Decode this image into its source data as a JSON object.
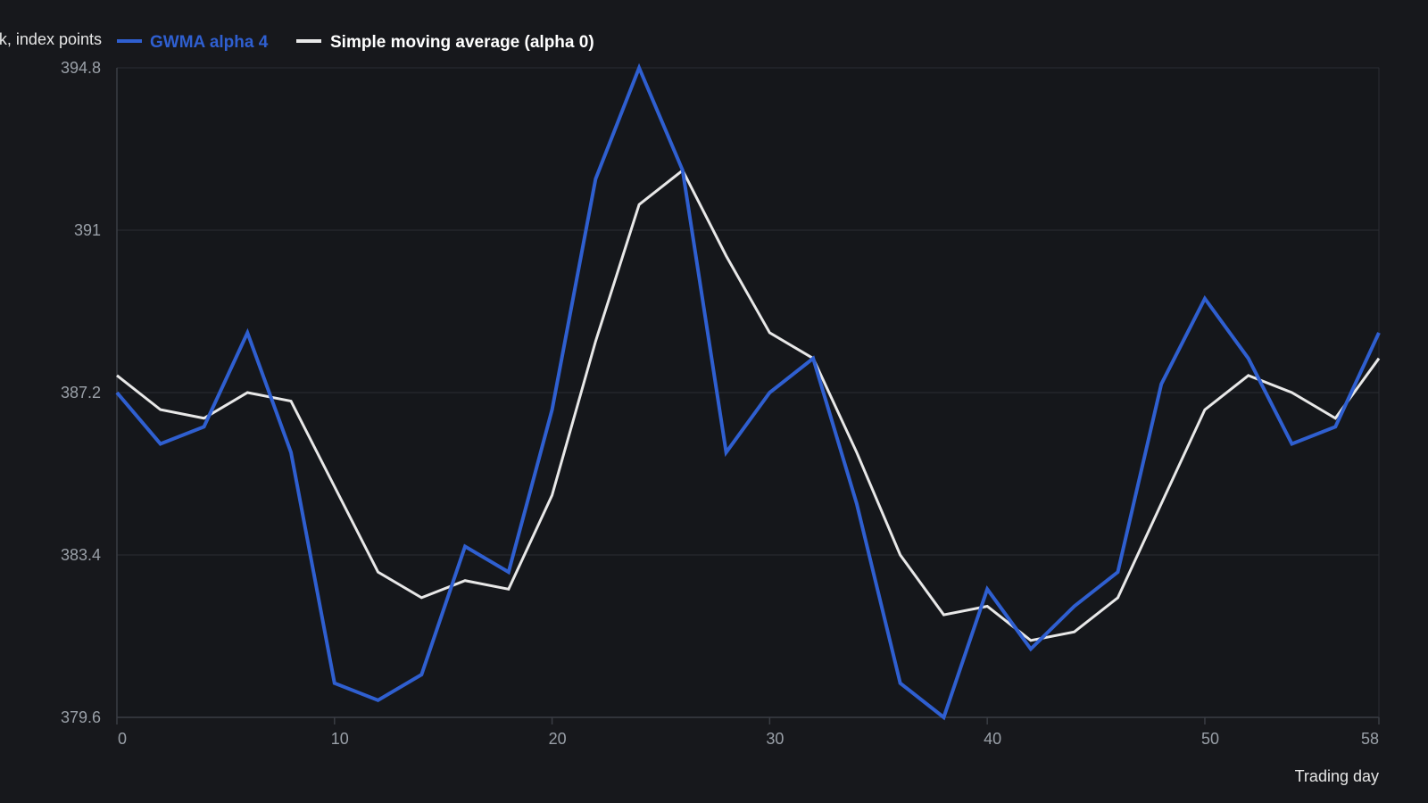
{
  "chart_data": {
    "type": "line",
    "title": "",
    "xlabel": "Trading day",
    "ylabel": "k, index points",
    "xlim": [
      0,
      58
    ],
    "ylim": [
      379.6,
      394.8
    ],
    "x_ticks": [
      0,
      10,
      20,
      30,
      40,
      50,
      58
    ],
    "x_tick_labels": [
      "0",
      "10",
      "20",
      "30",
      "40",
      "50",
      "58"
    ],
    "y_ticks": [
      379.6,
      383.4,
      387.2,
      391,
      394.8
    ],
    "y_tick_labels": [
      "379.6",
      "383.4",
      "387.2",
      "391",
      "394.8"
    ],
    "grid": true,
    "legend_position": "top-left",
    "x": [
      0,
      2,
      4,
      6,
      8,
      10,
      12,
      14,
      16,
      18,
      20,
      22,
      24,
      26,
      28,
      30,
      32,
      34,
      36,
      38,
      40,
      42,
      44,
      46,
      48,
      50,
      52,
      54,
      56,
      58
    ],
    "series": [
      {
        "name": "GWMA alpha 4",
        "color": "#2f5fd0",
        "values": [
          387.2,
          386.0,
          386.4,
          388.6,
          385.8,
          380.4,
          380.0,
          380.6,
          383.6,
          383.0,
          386.8,
          392.2,
          394.8,
          392.4,
          385.8,
          387.2,
          388.0,
          384.6,
          380.4,
          379.6,
          382.6,
          381.2,
          382.2,
          383.0,
          387.4,
          389.4,
          388.0,
          386.0,
          386.4,
          388.6
        ]
      },
      {
        "name": "Simple moving average (alpha 0)",
        "color": "#e8e8e8",
        "values": [
          387.6,
          386.8,
          386.6,
          387.2,
          387.0,
          385.0,
          383.0,
          382.4,
          382.8,
          382.6,
          384.8,
          388.4,
          391.6,
          392.4,
          390.4,
          388.6,
          388.0,
          385.8,
          383.4,
          382.0,
          382.2,
          381.4,
          381.6,
          382.4,
          384.6,
          386.8,
          387.6,
          387.2,
          386.6,
          388.0
        ]
      }
    ]
  },
  "colors": {
    "background": "#17181c",
    "plot_background": "#15171b",
    "grid": "#2a2d33",
    "axis": "#3a3d44",
    "tick_text": "#9aa0a8",
    "axis_title_text": "#e6e6e6"
  }
}
